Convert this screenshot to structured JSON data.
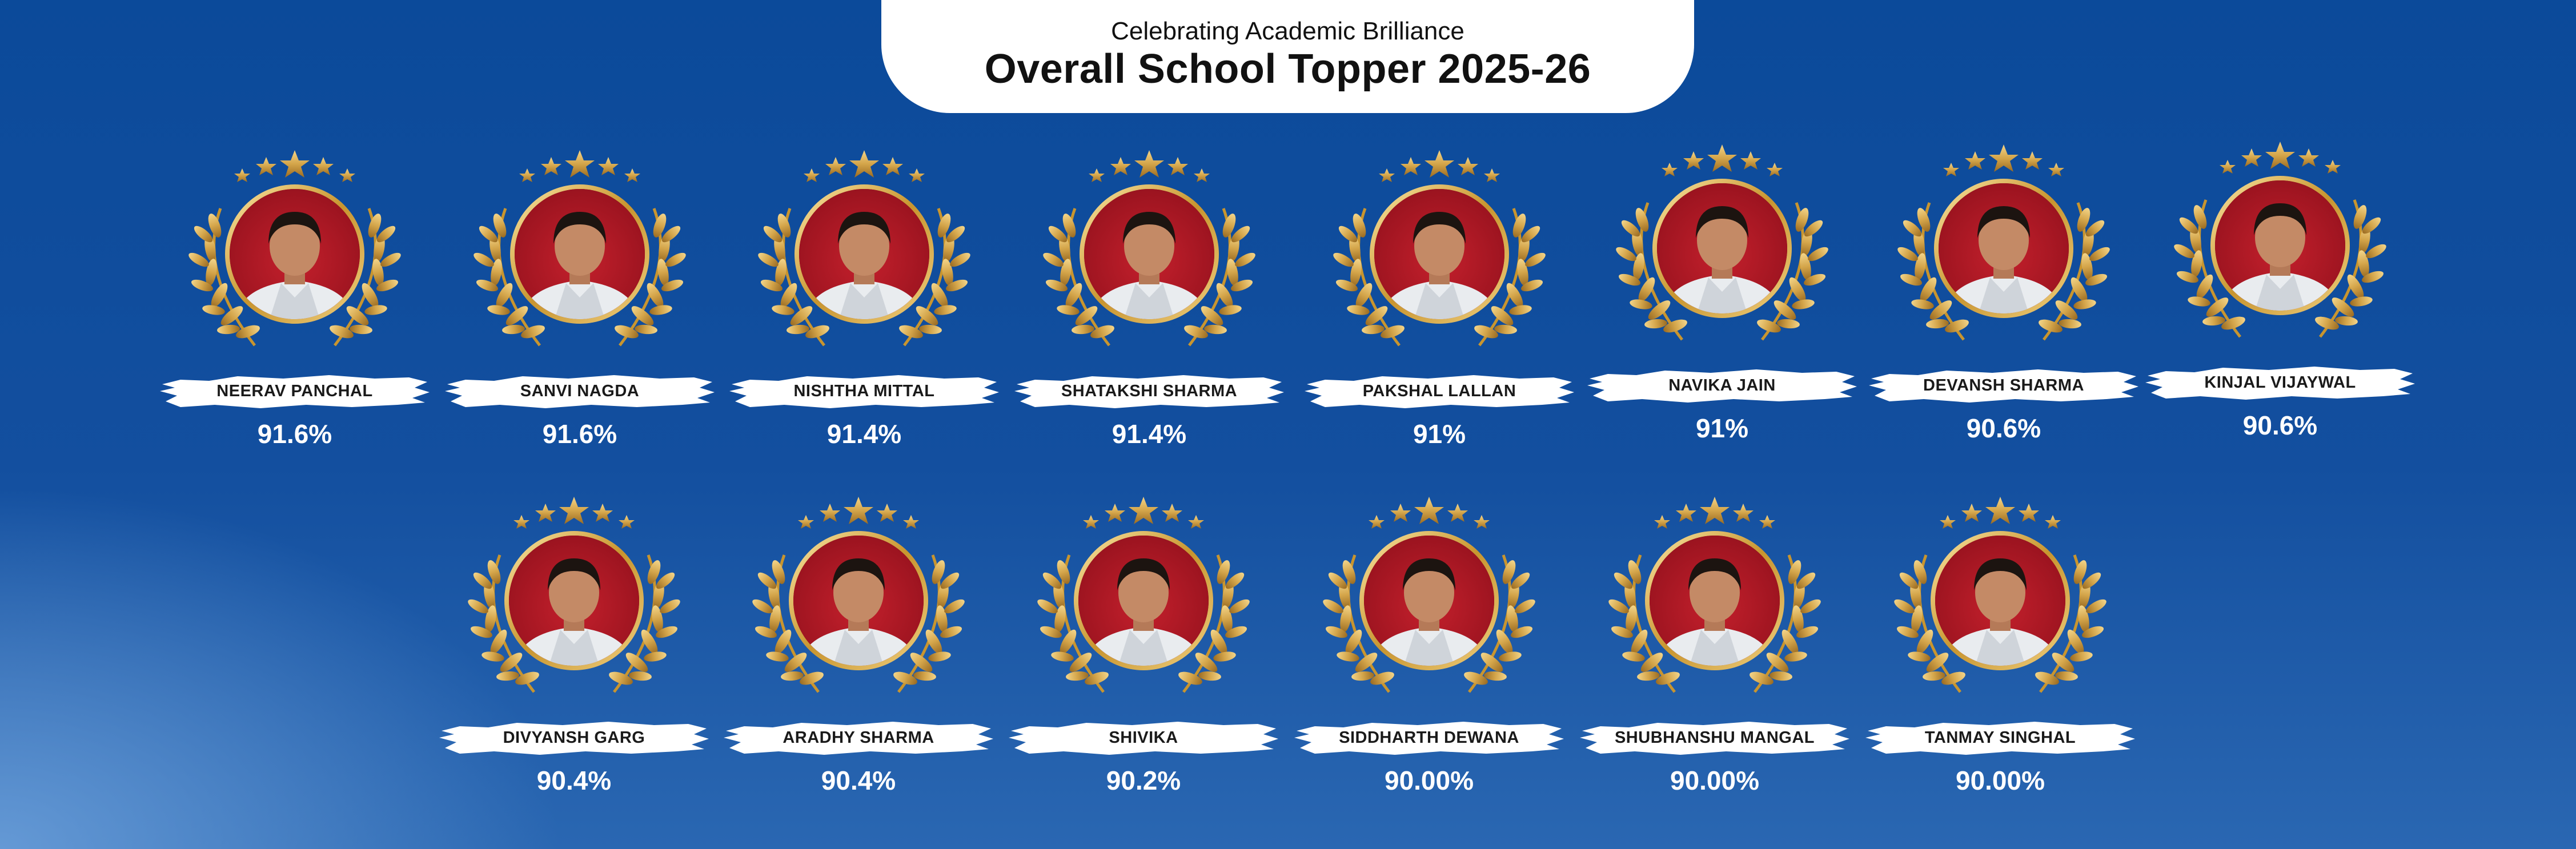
{
  "header": {
    "subtitle": "Celebrating Academic Brilliance",
    "title": "Overall School Topper 2025-26"
  },
  "colors": {
    "background": "#0b4a9a",
    "gold": "#d4a54a",
    "photo_bg": "#b01b27"
  },
  "toppers": [
    {
      "name": "NEERAV PANCHAL",
      "score": "91.6%"
    },
    {
      "name": "SANVI NAGDA",
      "score": "91.6%"
    },
    {
      "name": "NISHTHA MITTAL",
      "score": "91.4%"
    },
    {
      "name": "SHATAKSHI SHARMA",
      "score": "91.4%"
    },
    {
      "name": "PAKSHAL LALLAN",
      "score": "91%"
    },
    {
      "name": "NAVIKA JAIN",
      "score": "91%"
    },
    {
      "name": "DEVANSH SHARMA",
      "score": "90.6%"
    },
    {
      "name": "KINJAL VIJAYWAL",
      "score": "90.6%"
    },
    {
      "name": "DIVYANSH GARG",
      "score": "90.4%"
    },
    {
      "name": "ARADHY SHARMA",
      "score": "90.4%"
    },
    {
      "name": "SHIVIKA",
      "score": "90.2%"
    },
    {
      "name": "SIDDHARTH DEWANA",
      "score": "90.00%"
    },
    {
      "name": "SHUBHANSHU MANGAL",
      "score": "90.00%"
    },
    {
      "name": "TANMAY SINGHAL",
      "score": "90.00%"
    }
  ]
}
